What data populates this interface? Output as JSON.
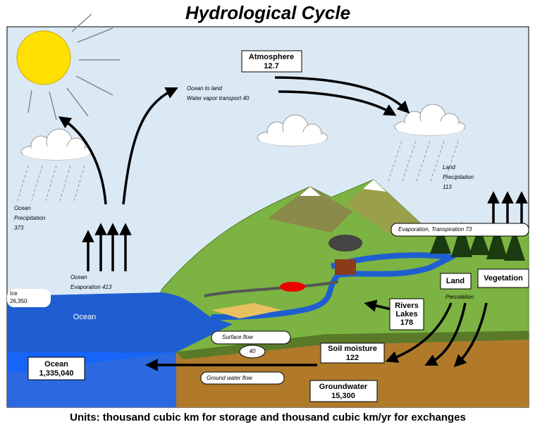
{
  "title": "Hydrological Cycle",
  "atmosphere": {
    "name": "Atmosphere",
    "value": "12.7"
  },
  "vapor_transport": [
    "Ocean to land",
    "Water vapor transport 40"
  ],
  "ocean_precipitation": [
    "Ocean",
    "Precipitation",
    "373"
  ],
  "land_precipitation": [
    "Land",
    "Precipitation",
    "113"
  ],
  "evapotranspiration": "Evaporation, Transpiration 73",
  "ocean_evaporation": [
    "Ocean",
    "Evaporation 413"
  ],
  "ice": {
    "name": "Ice",
    "value": "26,350"
  },
  "ocean_label": "Ocean",
  "land": "Land",
  "vegetation": "Vegetation",
  "percolation": "Percolation",
  "rivers_lakes": [
    "Rivers",
    "Lakes",
    "178"
  ],
  "surface_flow": {
    "name": "Surface flow",
    "value": "40"
  },
  "soil_moisture": {
    "name": "Soil moisture",
    "value": "122"
  },
  "ocean_storage": {
    "name": "Ocean",
    "value": "1,335,040"
  },
  "ground_water_flow": "Ground water flow",
  "groundwater": {
    "name": "Groundwater",
    "value": "15,300"
  },
  "units": "Units: thousand cubic km for storage and thousand cubic km/yr for exchanges"
}
